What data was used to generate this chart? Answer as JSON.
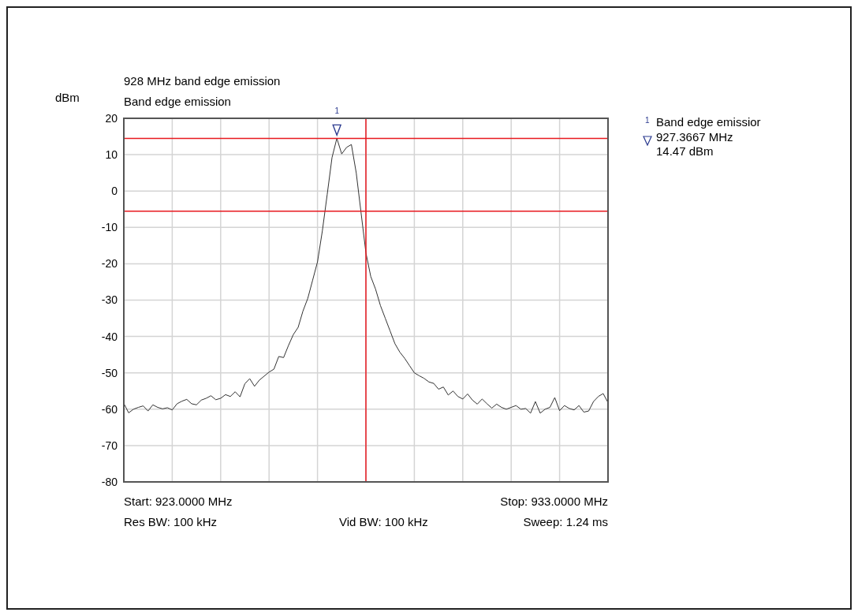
{
  "chart_data": {
    "type": "line",
    "title": "928 MHz band edge emission",
    "subtitle": "Band edge emission",
    "ylabel": "dBm",
    "categories": [
      null,
      null,
      null,
      null,
      null,
      null,
      null,
      null,
      null,
      null,
      null,
      null,
      null,
      null,
      null,
      null,
      null,
      null,
      null,
      null,
      null,
      null,
      null,
      null,
      null,
      null,
      null,
      null,
      null,
      null,
      null,
      null,
      null,
      null,
      null,
      null,
      null,
      null,
      null,
      null,
      null,
      null,
      null,
      null,
      null,
      null,
      null,
      null,
      null,
      null,
      null,
      null,
      null,
      null,
      null,
      null,
      null,
      null,
      null,
      null,
      null,
      null,
      null,
      null,
      null,
      null,
      null,
      null,
      null,
      null,
      null,
      null,
      null,
      null,
      null,
      null,
      null,
      null,
      null,
      null,
      null,
      null,
      null,
      null,
      null,
      null,
      null,
      null,
      null,
      null,
      null,
      null,
      null,
      null,
      null,
      null,
      null,
      null,
      null,
      null,
      null
    ],
    "ylim": [
      -80,
      20
    ],
    "yticks": [
      -80,
      -70,
      -60,
      -50,
      -40,
      -30,
      -20,
      -10,
      0,
      10,
      20
    ],
    "tick_labels": "y",
    "grid": true,
    "series": [
      {
        "color": "#333333",
        "values": [
          -58.4,
          -61,
          -60,
          -59.5,
          -59.1,
          -60.5,
          -58.8,
          -59.5,
          -59.9,
          -59.6,
          -60.2,
          -58.5,
          -57.8,
          -57.3,
          -58.5,
          -58.8,
          -57.5,
          -57,
          -56.3,
          -57.4,
          -57,
          -56,
          -56.5,
          -55.2,
          -56.6,
          -53,
          -51.6,
          -53.7,
          -52,
          -50.9,
          -49.8,
          -49,
          -45.5,
          -45.8,
          -42.5,
          -39.5,
          -37.5,
          -33,
          -29.5,
          -24.5,
          -19.5,
          -11,
          -1,
          9.2,
          14.5,
          10.2,
          12,
          12.8,
          5,
          -6,
          -17,
          -23.5,
          -27,
          -31.5,
          -35,
          -38.5,
          -42,
          -44.3,
          -46,
          -48,
          -50,
          -50.8,
          -51.5,
          -52.5,
          -52.9,
          -54.5,
          -53.9,
          -56.1,
          -55,
          -56.5,
          -57.2,
          -55.8,
          -57.5,
          -58.6,
          -57.2,
          -58.5,
          -59.7,
          -58.6,
          -59.5,
          -60,
          -59.5,
          -59,
          -60,
          -59.8,
          -61.1,
          -57.9,
          -61.1,
          -60,
          -59.5,
          -56.8,
          -60.4,
          -59,
          -59.8,
          -60.2,
          -59,
          -60.8,
          -60.5,
          -57.9,
          -56.5,
          -55.7,
          -58.2
        ]
      }
    ],
    "ref_lines": [
      {
        "axis": "y",
        "value": 14.47,
        "color": "#e8191f"
      },
      {
        "axis": "y",
        "value": -5.53,
        "color": "#e8191f"
      }
    ],
    "annotations": [
      "1",
      "Band edge emissior",
      "927.3667 MHz",
      "14.47 dBm",
      "Start: 923.0000 MHz",
      "Stop: 933.0000 MHz",
      "Res BW: 100 kHz",
      "Vid BW: 100 kHz",
      "Sweep: 1.24 ms"
    ]
  }
}
